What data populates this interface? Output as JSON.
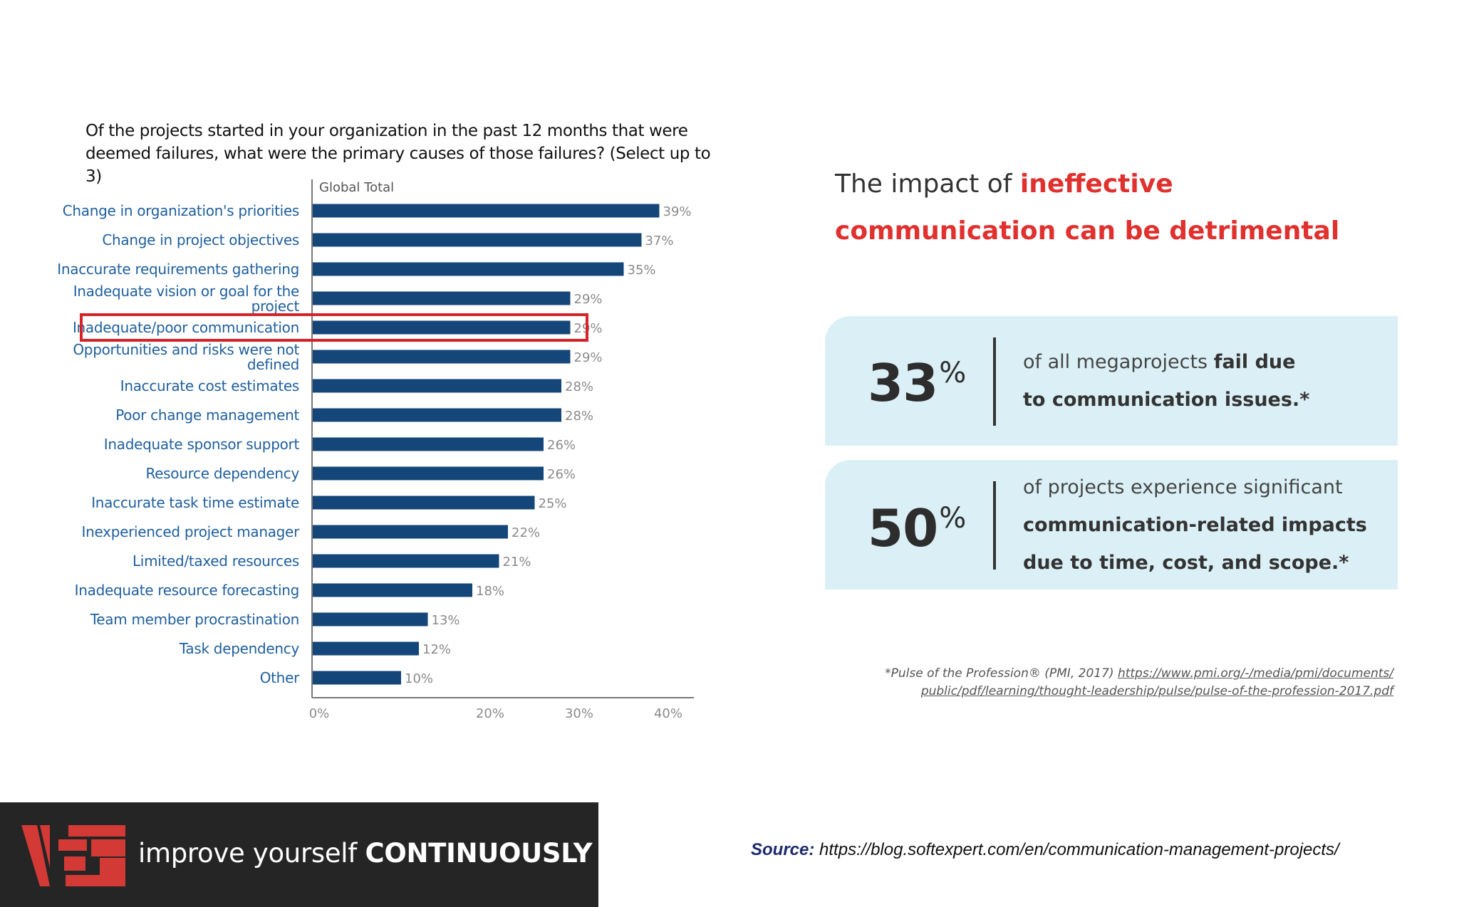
{
  "chart": {
    "question": "Of the projects started in your organization in the past 12 months that were deemed failures, what were the primary causes of those failures? (Select up to 3)"
  },
  "chart_data": {
    "type": "bar",
    "orientation": "horizontal",
    "title": "Of the projects started in your organization in the past 12 months that were deemed failures, what were the primary causes of those failures? (Select up to 3)",
    "series_name": "Global Total",
    "categories": [
      "Change in organization's priorities",
      "Change in project objectives",
      "Inaccurate requirements gathering",
      "Inadequate vision or goal for the project",
      "Inadequate/poor communication",
      "Opportunities and risks were not defined",
      "Inaccurate cost estimates",
      "Poor change management",
      "Inadequate sponsor support",
      "Resource dependency",
      "Inaccurate task time estimate",
      "Inexperienced project manager",
      "Limited/taxed resources",
      "Inadequate resource forecasting",
      "Team member procrastination",
      "Task dependency",
      "Other"
    ],
    "values": [
      39,
      37,
      35,
      29,
      29,
      29,
      28,
      28,
      26,
      26,
      25,
      22,
      21,
      18,
      13,
      12,
      10
    ],
    "value_labels": [
      "39%",
      "37%",
      "35%",
      "29%",
      "29%",
      "29%",
      "28%",
      "28%",
      "26%",
      "26%",
      "25%",
      "22%",
      "21%",
      "18%",
      "13%",
      "12%",
      "10%"
    ],
    "highlighted_category": "Inadequate/poor communication",
    "xlim": [
      0,
      40
    ],
    "xticks": [
      "0%",
      "20%",
      "30%",
      "40%"
    ],
    "xtick_values": [
      0,
      20,
      30,
      40
    ],
    "grid": false,
    "colors": {
      "bar": "#15467a",
      "label": "#1f5f9e",
      "highlight": "#d6232a"
    }
  },
  "impact": {
    "title_prefix": "The impact of ",
    "title_accent_1": "ineffective",
    "title_accent_2": "communication can be detrimental",
    "accent_color": "#e0312f",
    "card_color": "#dbf0f6"
  },
  "stats": [
    {
      "number": "33",
      "unit": "%",
      "lines": [
        {
          "plain": "of all megaprojects ",
          "bold": "fail due"
        },
        {
          "plain": "",
          "bold": "to communication issues.*"
        }
      ]
    },
    {
      "number": "50",
      "unit": "%",
      "lines": [
        {
          "plain": "of projects experience significant",
          "bold": ""
        },
        {
          "plain": "",
          "bold": "communication-related impacts"
        },
        {
          "plain": "",
          "bold": "due to time, cost, and scope.*"
        }
      ]
    }
  ],
  "footnote": {
    "prefix": "*Pulse of the Profession® (PMI, 2017) ",
    "link_line1": "https://www.pmi.org/-/media/pmi/documents/",
    "link_line2": "public/pdf/learning/thought-leadership/pulse/pulse-of-the-profession-2017.pdf"
  },
  "brand": {
    "tagline_plain": "improve yourself ",
    "tagline_bold": "CONTINUOUSLY",
    "logo_icon": "ies-logo-icon",
    "logo_color": "#d33a35",
    "bar_color": "#252525"
  },
  "source": {
    "label": "Source:",
    "url": "https://blog.softexpert.com/en/communication-management-projects/"
  }
}
